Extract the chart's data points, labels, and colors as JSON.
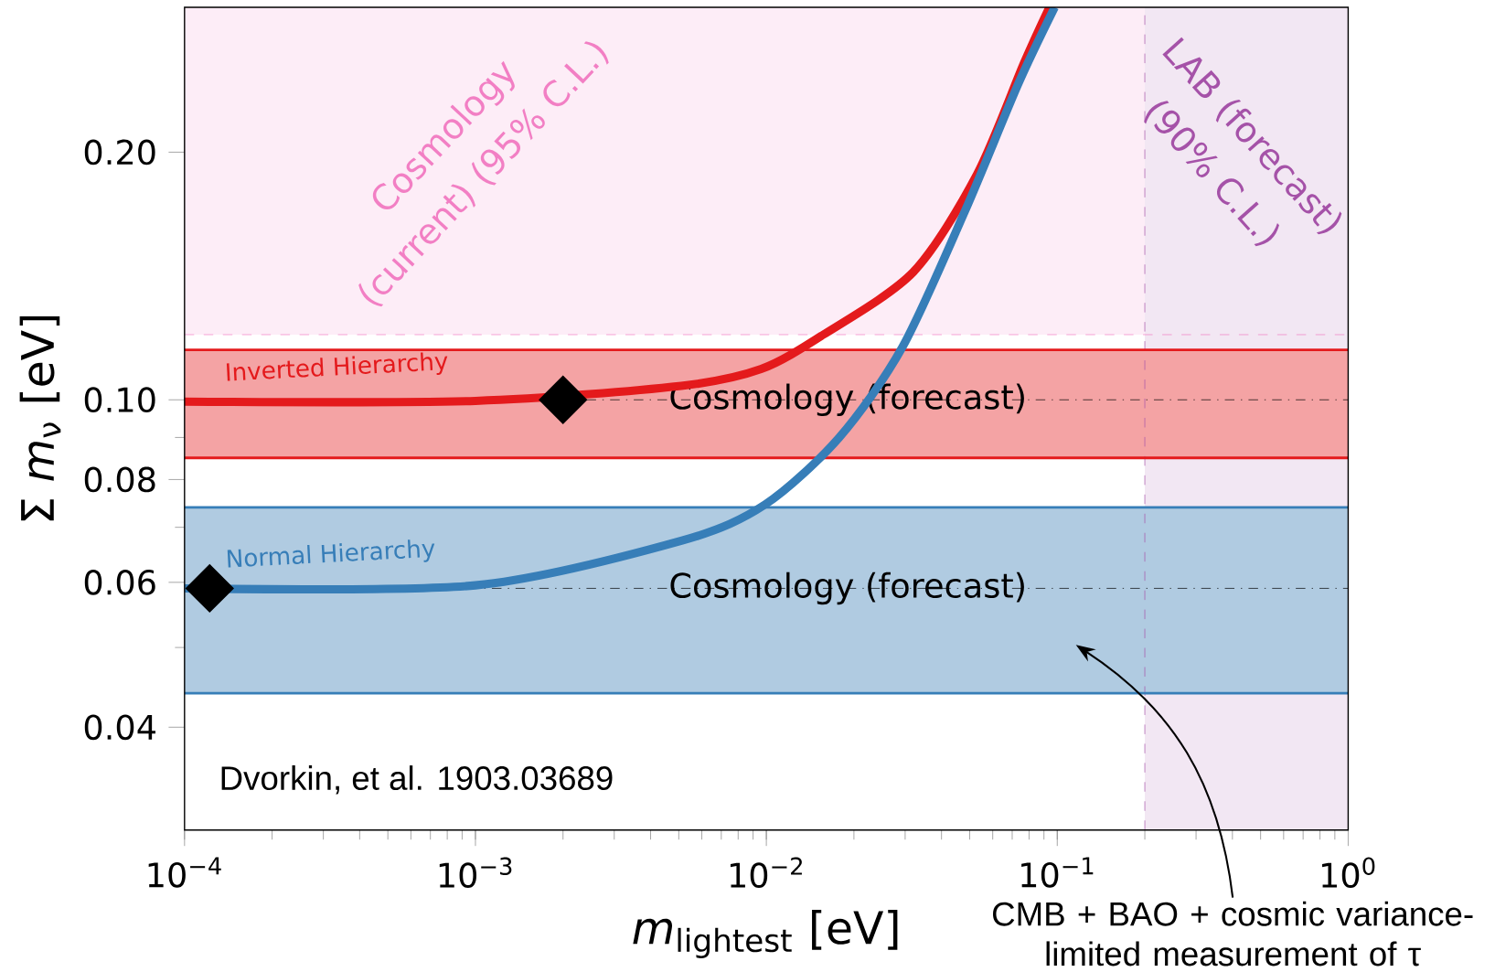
{
  "chart_data": {
    "type": "line",
    "xlabel": "*m*$_{lightest}$ [eV]",
    "ylabel": "Σ *m*$_{ν}$ [eV]",
    "log": "xy",
    "grid": false,
    "xlim": [
      0.0001,
      1
    ],
    "ylim": [
      0.03,
      0.3
    ],
    "xticks": [
      {
        "value": 0.0001,
        "label": "10$^{−4}$"
      },
      {
        "value": 0.001,
        "label": "10$^{−3}$"
      },
      {
        "value": 0.01,
        "label": "10$^{−2}$"
      },
      {
        "value": 0.1,
        "label": "10$^{−1}$"
      },
      {
        "value": 1,
        "label": "10$^{0}$"
      }
    ],
    "yticks": [
      {
        "value": 0.04,
        "label": "0.04"
      },
      {
        "value": 0.05,
        "label": null
      },
      {
        "value": 0.06,
        "label": "0.06"
      },
      {
        "value": 0.07,
        "label": null
      },
      {
        "value": 0.08,
        "label": "0.08"
      },
      {
        "value": 0.09,
        "label": null
      },
      {
        "value": 0.1,
        "label": "0.10"
      },
      {
        "value": 0.2,
        "label": "0.20"
      }
    ],
    "series": [
      {
        "name": "Inverted Hierarchy",
        "color": "#e41a1c",
        "x": [
          0.0001,
          0.001,
          0.0051,
          0.0096,
          0.0157,
          0.032,
          0.053,
          0.077,
          0.094
        ],
        "values": [
          0.0995,
          0.0997,
          0.104,
          0.109,
          0.12,
          0.143,
          0.188,
          0.257,
          0.3
        ]
      },
      {
        "name": "Normal Hierarchy",
        "color": "#377eb8",
        "x": [
          0.0001,
          0.001,
          0.0051,
          0.0099,
          0.0178,
          0.0294,
          0.0483,
          0.0734,
          0.098
        ],
        "values": [
          0.059,
          0.0595,
          0.0674,
          0.0746,
          0.09,
          0.116,
          0.17,
          0.242,
          0.3
        ]
      },
      {
        "type": "scatter",
        "marker": "diamond",
        "color": "#000000",
        "x": [
          0.002,
          0.000122
        ],
        "values": [
          0.1,
          0.059
        ]
      }
    ],
    "bands": [
      {
        "axis": "y",
        "from": 0.12,
        "to": 0.3,
        "label": "Cosmology (current) (95% C.L.)",
        "color": "#fdedf7"
      },
      {
        "axis": "x",
        "from": 0.2,
        "to": 1,
        "label": "LAB (forecast) (90% C.L.)",
        "color": "#f2e7f3"
      },
      {
        "axis": "y",
        "from": 0.085,
        "to": 0.115,
        "color": "#f4a3a4"
      },
      {
        "axis": "y",
        "from": 0.044,
        "to": 0.074,
        "color": "#b0cbe1"
      }
    ],
    "ref_lines": [
      {
        "axis": "y",
        "value": 0.12,
        "color": "#f27fc4",
        "line_style": "dashed"
      },
      {
        "axis": "x",
        "value": 0.2,
        "color": "#a552a8",
        "line_style": "dashed"
      },
      {
        "axis": "y",
        "value": 0.115,
        "color": "#e41a1c",
        "line_style": "solid"
      },
      {
        "axis": "y",
        "value": 0.085,
        "color": "#e41a1c",
        "line_style": "solid"
      },
      {
        "axis": "y",
        "value": 0.074,
        "color": "#377eb8",
        "line_style": "solid"
      },
      {
        "axis": "y",
        "value": 0.044,
        "color": "#377eb8",
        "line_style": "solid"
      },
      {
        "axis": "y",
        "value": 0.1,
        "label": "Cosmology (forecast)",
        "color": "#000000",
        "line_style": "dashdot"
      },
      {
        "axis": "y",
        "value": 0.059,
        "label": "Cosmology (forecast)",
        "color": "#000000",
        "line_style": "dashdot"
      }
    ],
    "annotations": [
      "Dvorkin, et al. 1903.03689",
      "CMB + BAO + cosmic variance-limited measurement of τ"
    ]
  }
}
